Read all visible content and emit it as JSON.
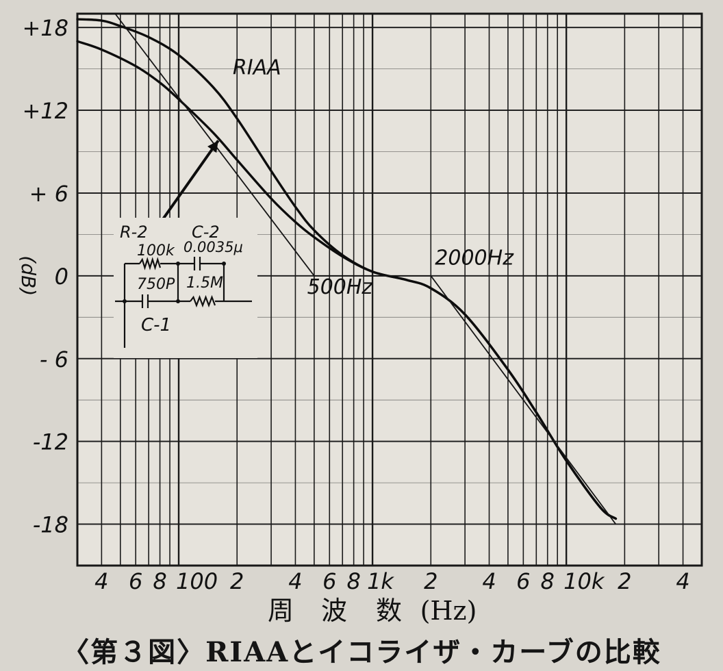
{
  "chart_data": {
    "type": "line",
    "xscale": "log",
    "xlim": [
      30,
      50000
    ],
    "ylim": [
      -21,
      19
    ],
    "ylabel": "(dB)",
    "xlabel_chars": [
      "周",
      "波",
      "数",
      "(Hz)"
    ],
    "yticks": [
      {
        "value": 18,
        "label": "+18"
      },
      {
        "value": 12,
        "label": "+12"
      },
      {
        "value": 6,
        "label": "+ 6"
      },
      {
        "value": 0,
        "label": "0"
      },
      {
        "value": -6,
        "label": "- 6"
      },
      {
        "value": -12,
        "label": "-12"
      },
      {
        "value": -18,
        "label": "-18"
      }
    ],
    "xticks": [
      {
        "value": 40,
        "label": "4"
      },
      {
        "value": 60,
        "label": "6"
      },
      {
        "value": 80,
        "label": "8"
      },
      {
        "value": 100,
        "label": "100"
      },
      {
        "value": 200,
        "label": "2"
      },
      {
        "value": 400,
        "label": "4"
      },
      {
        "value": 600,
        "label": "6"
      },
      {
        "value": 800,
        "label": "8"
      },
      {
        "value": 1000,
        "label": "1k"
      },
      {
        "value": 2000,
        "label": "2"
      },
      {
        "value": 4000,
        "label": "4"
      },
      {
        "value": 6000,
        "label": "6"
      },
      {
        "value": 8000,
        "label": "8"
      },
      {
        "value": 10000,
        "label": "10k"
      },
      {
        "value": 20000,
        "label": "2"
      },
      {
        "value": 40000,
        "label": "4"
      }
    ],
    "grid": true,
    "series": [
      {
        "name": "RIAA",
        "points": [
          [
            30,
            18.6
          ],
          [
            40,
            18.5
          ],
          [
            50,
            18.1
          ],
          [
            70,
            17.3
          ],
          [
            100,
            16.0
          ],
          [
            150,
            13.7
          ],
          [
            200,
            11.4
          ],
          [
            300,
            7.6
          ],
          [
            400,
            5.0
          ],
          [
            500,
            3.3
          ],
          [
            700,
            1.5
          ],
          [
            1000,
            0.3
          ],
          [
            1500,
            -0.3
          ],
          [
            2000,
            -0.9
          ],
          [
            3000,
            -2.8
          ],
          [
            5000,
            -6.8
          ],
          [
            7000,
            -9.9
          ],
          [
            10000,
            -13.4
          ],
          [
            15000,
            -16.8
          ],
          [
            18000,
            -17.6
          ]
        ]
      },
      {
        "name": "",
        "points": [
          [
            30,
            17.0
          ],
          [
            40,
            16.4
          ],
          [
            60,
            15.2
          ],
          [
            80,
            14.0
          ],
          [
            100,
            12.8
          ],
          [
            150,
            10.4
          ],
          [
            200,
            8.4
          ],
          [
            300,
            5.6
          ],
          [
            400,
            3.9
          ],
          [
            500,
            2.8
          ],
          [
            700,
            1.4
          ],
          [
            1000,
            0.3
          ],
          [
            1500,
            -0.3
          ],
          [
            2000,
            -0.9
          ],
          [
            3000,
            -2.8
          ],
          [
            5000,
            -6.8
          ],
          [
            7000,
            -9.9
          ],
          [
            10000,
            -13.4
          ],
          [
            15000,
            -16.8
          ],
          [
            18000,
            -17.6
          ]
        ]
      }
    ],
    "asymptotes": [
      [
        [
          47,
          19
        ],
        [
          500,
          0
        ]
      ],
      [
        [
          500,
          0
        ],
        [
          2000,
          0
        ]
      ],
      [
        [
          2000,
          0
        ],
        [
          18000,
          -18
        ]
      ]
    ],
    "arrow": {
      "from": [
        80,
        3.8
      ],
      "to": [
        160,
        9.8
      ]
    },
    "annotations": [
      {
        "text": "RIAA",
        "at": [
          190,
          14.6
        ]
      },
      {
        "text": "500Hz",
        "at": [
          460,
          -1.3
        ]
      },
      {
        "text": "2000Hz",
        "at": [
          2100,
          0.8
        ]
      }
    ],
    "circuit_labels": {
      "r2": "R-2",
      "r2_value": "100k",
      "c2": "C-2",
      "c2_value": "0.0035μ",
      "cap_value": "750P",
      "r_value": "1.5M",
      "c1": "C-1"
    }
  },
  "caption": "〈第３図〉RIAAとイコライザ・カーブの比較"
}
